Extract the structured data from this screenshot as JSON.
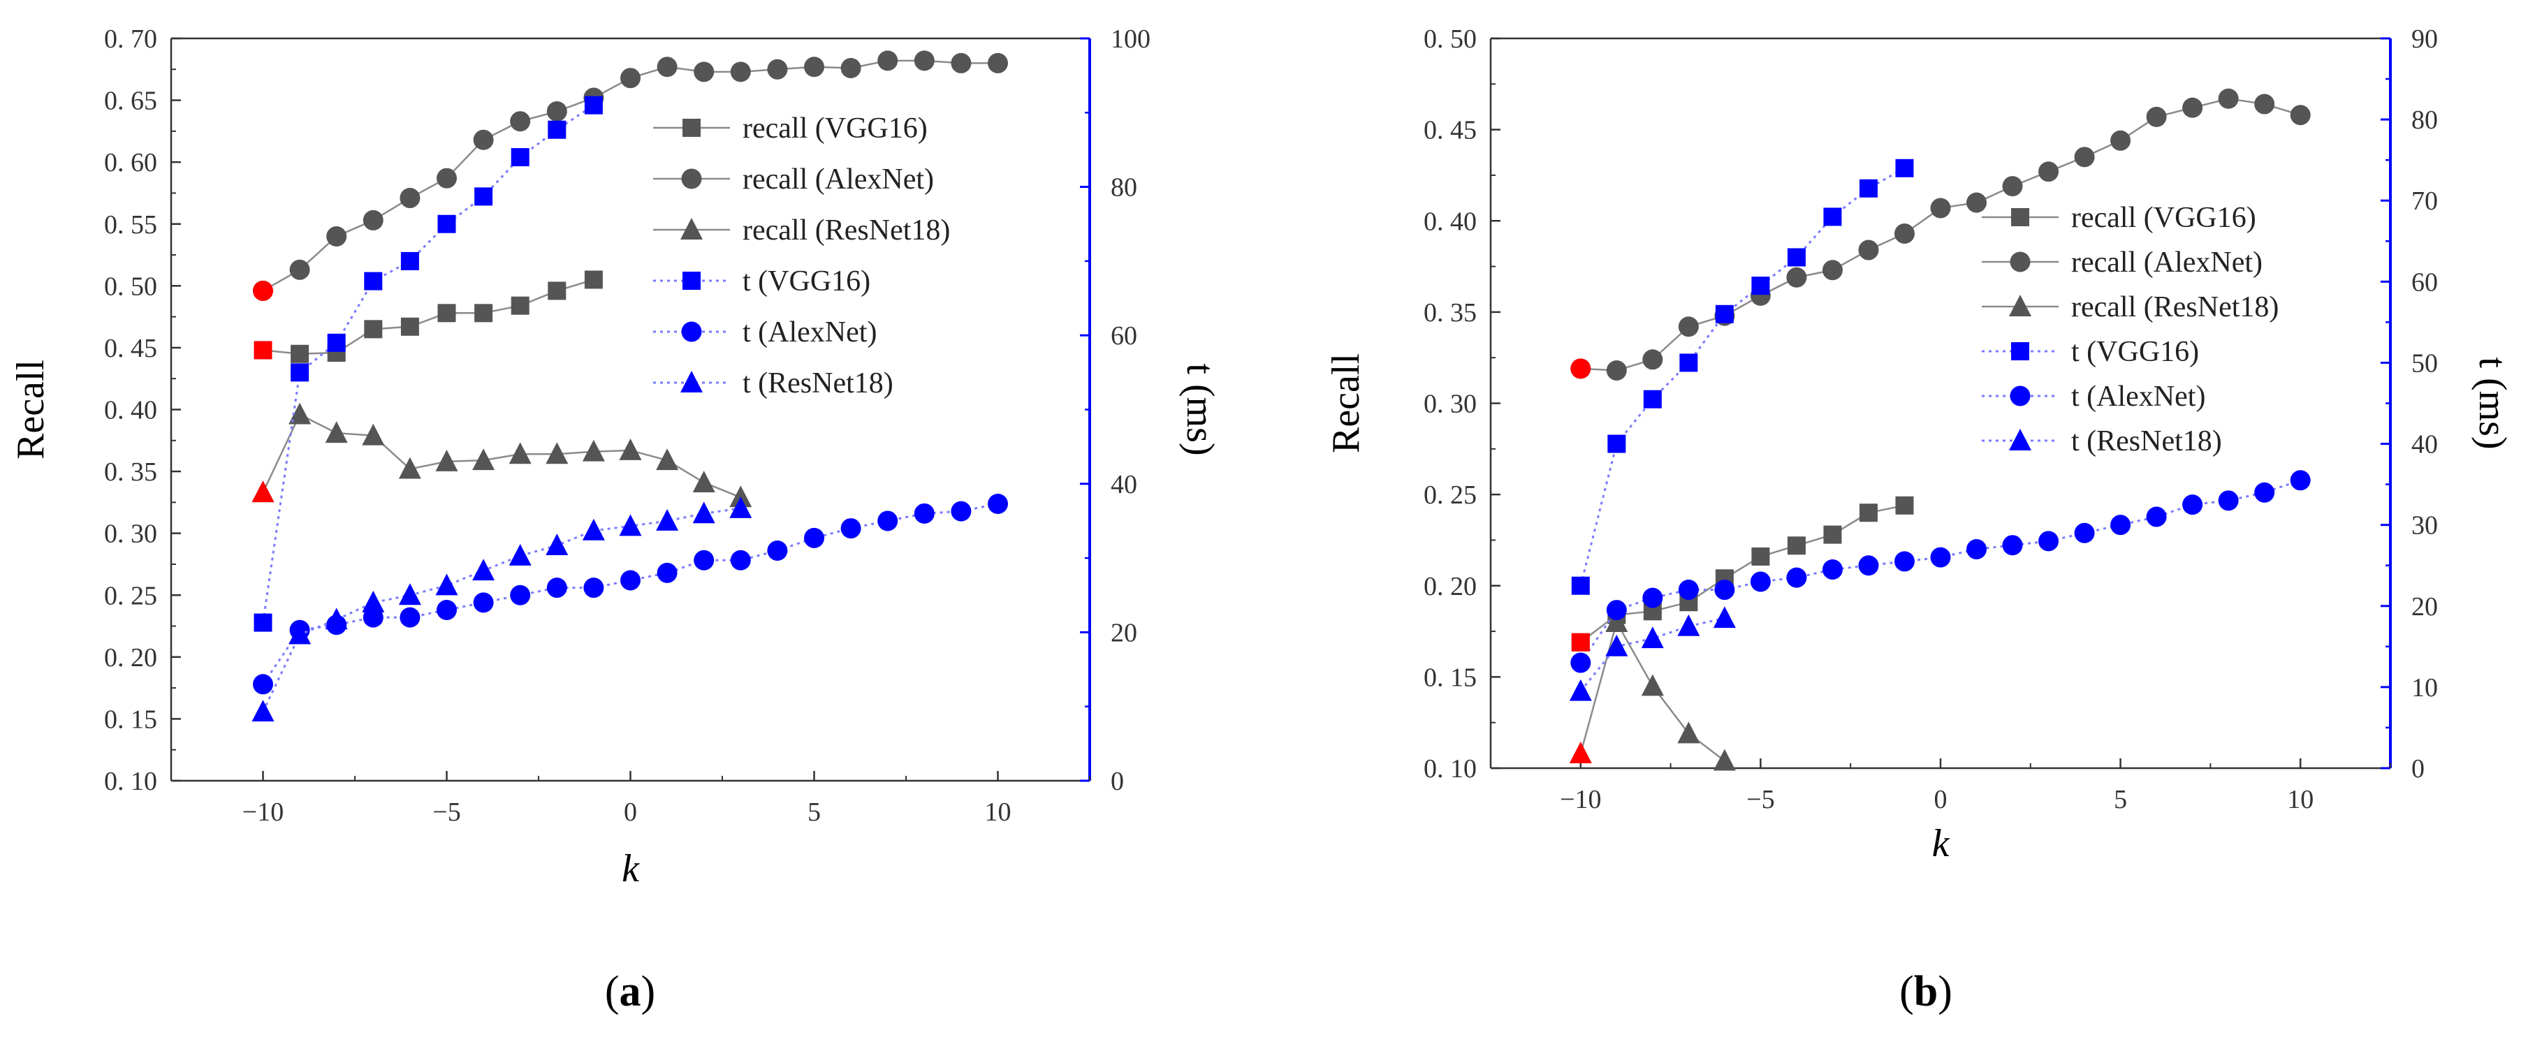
{
  "colors": {
    "recall": "#555555",
    "recall_line": "#8a8a8a",
    "time": "#0000ff",
    "time_line": "#7a7aff",
    "start": "#ff0000",
    "axis": "#333333",
    "right_axis": "#0000ff"
  },
  "chart_data": [
    {
      "panel_label": "(a)",
      "panel_letter": "a",
      "type": "line",
      "xlabel": "k",
      "ylabel_left": "Recall",
      "ylabel_right": "t (ms)",
      "xlim": [
        -12.5,
        12.5
      ],
      "ylim_left": [
        0.1,
        0.7
      ],
      "ylim_right": [
        0,
        100
      ],
      "xticks": [
        -10,
        -5,
        0,
        5,
        10
      ],
      "xtick_labels": [
        "−10",
        "−5",
        "0",
        "5",
        "10"
      ],
      "yticks_left": [
        0.1,
        0.15,
        0.2,
        0.25,
        0.3,
        0.35,
        0.4,
        0.45,
        0.5,
        0.55,
        0.6,
        0.65,
        0.7
      ],
      "ytick_labels_left": [
        "0. 10",
        "0. 15",
        "0. 20",
        "0. 25",
        "0. 30",
        "0. 35",
        "0. 40",
        "0. 45",
        "0. 50",
        "0. 55",
        "0. 60",
        "0. 65",
        "0. 70"
      ],
      "yticks_right": [
        0,
        20,
        40,
        60,
        80,
        100
      ],
      "ytick_labels_right": [
        "0",
        "20",
        "40",
        "60",
        "80",
        "100"
      ],
      "legend_position": "top-right",
      "series": [
        {
          "name": "recall (VGG16)",
          "axis": "left",
          "marker": "square",
          "style": "solid",
          "x": [
            -10,
            -9,
            -8,
            -7,
            -6,
            -5,
            -4,
            -3,
            -2,
            -1
          ],
          "y": [
            0.448,
            0.445,
            0.446,
            0.465,
            0.467,
            0.478,
            0.478,
            0.484,
            0.496,
            0.505
          ]
        },
        {
          "name": "recall (AlexNet)",
          "axis": "left",
          "marker": "circle",
          "style": "solid",
          "x": [
            -10,
            -9,
            -8,
            -7,
            -6,
            -5,
            -4,
            -3,
            -2,
            -1,
            0,
            1,
            2,
            3,
            4,
            5,
            6,
            7,
            8,
            9,
            10
          ],
          "y": [
            0.496,
            0.513,
            0.54,
            0.553,
            0.571,
            0.587,
            0.618,
            0.633,
            0.641,
            0.652,
            0.668,
            0.677,
            0.673,
            0.673,
            0.675,
            0.677,
            0.676,
            0.682,
            0.682,
            0.68,
            0.68
          ]
        },
        {
          "name": "recall (ResNet18)",
          "axis": "left",
          "marker": "triangle",
          "style": "solid",
          "x": [
            -10,
            -9,
            -8,
            -7,
            -6,
            -5,
            -4,
            -3,
            -2,
            -1,
            0,
            1,
            2,
            3
          ],
          "y": [
            0.333,
            0.396,
            0.381,
            0.379,
            0.352,
            0.358,
            0.359,
            0.364,
            0.364,
            0.366,
            0.367,
            0.359,
            0.341,
            0.329
          ]
        },
        {
          "name": "t (VGG16)",
          "axis": "right",
          "marker": "square",
          "style": "dotted",
          "x": [
            -10,
            -9,
            -8,
            -7,
            -6,
            -5,
            -4,
            -3,
            -2,
            -1
          ],
          "y": [
            21.3,
            55.0,
            59.0,
            67.3,
            70.0,
            75.0,
            78.7,
            84.0,
            87.7,
            91.0
          ]
        },
        {
          "name": "t (AlexNet)",
          "axis": "right",
          "marker": "circle",
          "style": "dotted",
          "x": [
            -10,
            -9,
            -8,
            -7,
            -6,
            -5,
            -4,
            -3,
            -2,
            -1,
            0,
            1,
            2,
            3,
            4,
            5,
            6,
            7,
            8,
            9,
            10
          ],
          "y": [
            13.0,
            20.3,
            21.0,
            22.0,
            22.0,
            23.0,
            24.0,
            25.0,
            26.0,
            26.0,
            27.0,
            28.0,
            29.7,
            29.7,
            31.0,
            32.7,
            34.0,
            35.0,
            36.0,
            36.3,
            37.3
          ]
        },
        {
          "name": "t (ResNet18)",
          "axis": "right",
          "marker": "triangle",
          "style": "dotted",
          "x": [
            -10,
            -9,
            -8,
            -7,
            -6,
            -5,
            -4,
            -3,
            -2,
            -1,
            0,
            1,
            2,
            3
          ],
          "y": [
            9.3,
            19.7,
            21.7,
            24.0,
            25.0,
            26.3,
            28.3,
            30.3,
            31.7,
            33.7,
            34.3,
            35.0,
            36.0,
            36.7
          ]
        }
      ],
      "start_markers": [
        {
          "x": -10,
          "y": 0.448,
          "axis": "left",
          "marker": "square"
        },
        {
          "x": -10,
          "y": 0.496,
          "axis": "left",
          "marker": "circle"
        },
        {
          "x": -10,
          "y": 0.333,
          "axis": "left",
          "marker": "triangle"
        }
      ]
    },
    {
      "panel_label": "(b)",
      "panel_letter": "b",
      "type": "line",
      "xlabel": "k",
      "ylabel_left": "Recall",
      "ylabel_right": "t (ms)",
      "xlim": [
        -12.5,
        12.5
      ],
      "ylim_left": [
        0.1,
        0.5
      ],
      "ylim_right": [
        0,
        90
      ],
      "xticks": [
        -10,
        -5,
        0,
        5,
        10
      ],
      "xtick_labels": [
        "−10",
        "−5",
        "0",
        "5",
        "10"
      ],
      "yticks_left": [
        0.1,
        0.15,
        0.2,
        0.25,
        0.3,
        0.35,
        0.4,
        0.45,
        0.5
      ],
      "ytick_labels_left": [
        "0. 10",
        "0. 15",
        "0. 20",
        "0. 25",
        "0. 30",
        "0. 35",
        "0. 40",
        "0. 45",
        "0. 50"
      ],
      "yticks_right": [
        0,
        10,
        20,
        30,
        40,
        50,
        60,
        70,
        80,
        90
      ],
      "ytick_labels_right": [
        "0",
        "10",
        "20",
        "30",
        "40",
        "50",
        "60",
        "70",
        "80",
        "90"
      ],
      "legend_position": "center-right",
      "series": [
        {
          "name": "recall (VGG16)",
          "axis": "left",
          "marker": "square",
          "style": "solid",
          "x": [
            -10,
            -9,
            -8,
            -7,
            -6,
            -5,
            -4,
            -3,
            -2,
            -1
          ],
          "y": [
            0.169,
            0.184,
            0.186,
            0.191,
            0.204,
            0.216,
            0.222,
            0.228,
            0.24,
            0.244
          ]
        },
        {
          "name": "recall (AlexNet)",
          "axis": "left",
          "marker": "circle",
          "style": "solid",
          "x": [
            -10,
            -9,
            -8,
            -7,
            -6,
            -5,
            -4,
            -3,
            -2,
            -1,
            0,
            1,
            2,
            3,
            4,
            5,
            6,
            7,
            8,
            9,
            10
          ],
          "y": [
            0.319,
            0.318,
            0.324,
            0.342,
            0.348,
            0.359,
            0.369,
            0.373,
            0.384,
            0.393,
            0.407,
            0.41,
            0.419,
            0.427,
            0.435,
            0.444,
            0.457,
            0.462,
            0.467,
            0.464,
            0.458
          ]
        },
        {
          "name": "recall (ResNet18)",
          "axis": "left",
          "marker": "triangle",
          "style": "solid",
          "x": [
            -10,
            -9,
            -8,
            -7,
            -6
          ],
          "y": [
            0.108,
            0.18,
            0.145,
            0.119,
            0.104
          ]
        },
        {
          "name": "t (VGG16)",
          "axis": "right",
          "marker": "square",
          "style": "dotted",
          "x": [
            -10,
            -9,
            -8,
            -7,
            -6,
            -5,
            -4,
            -3,
            -2,
            -1
          ],
          "y": [
            22.5,
            40.0,
            45.5,
            50.0,
            56.0,
            59.5,
            63.0,
            68.0,
            71.5,
            74.0
          ]
        },
        {
          "name": "t (AlexNet)",
          "axis": "right",
          "marker": "circle",
          "style": "dotted",
          "x": [
            -10,
            -9,
            -8,
            -7,
            -6,
            -5,
            -4,
            -3,
            -2,
            -1,
            0,
            1,
            2,
            3,
            4,
            5,
            6,
            7,
            8,
            9,
            10
          ],
          "y": [
            13.0,
            19.5,
            21.0,
            22.0,
            22.0,
            23.0,
            23.5,
            24.5,
            25.0,
            25.5,
            26.0,
            27.0,
            27.5,
            28.0,
            29.0,
            30.0,
            31.0,
            32.5,
            33.0,
            34.0,
            35.5
          ]
        },
        {
          "name": "t (ResNet18)",
          "axis": "right",
          "marker": "triangle",
          "style": "dotted",
          "x": [
            -10,
            -9,
            -8,
            -7,
            -6
          ],
          "y": [
            9.5,
            15.0,
            16.0,
            17.5,
            18.5
          ]
        }
      ],
      "start_markers": [
        {
          "x": -10,
          "y": 0.169,
          "axis": "left",
          "marker": "square"
        },
        {
          "x": -10,
          "y": 0.319,
          "axis": "left",
          "marker": "circle"
        },
        {
          "x": -10,
          "y": 0.108,
          "axis": "left",
          "marker": "triangle"
        }
      ]
    }
  ]
}
